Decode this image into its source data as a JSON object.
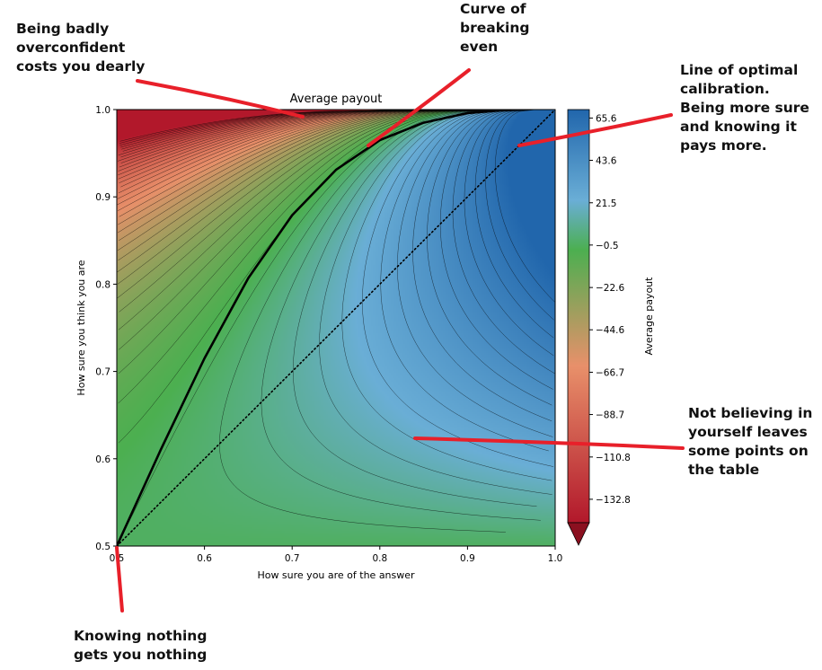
{
  "chart_data": {
    "type": "heatmap",
    "title": "Average payout",
    "xlabel": "How sure you are of the answer",
    "ylabel": "How sure you think you are",
    "xlim": [
      0.5,
      1.0
    ],
    "ylim": [
      0.5,
      1.0
    ],
    "x_ticks": [
      "0.5",
      "0.6",
      "0.7",
      "0.8",
      "0.9",
      "1.0"
    ],
    "y_ticks": [
      "0.5",
      "0.6",
      "0.7",
      "0.8",
      "0.9",
      "1.0"
    ],
    "colorbar": {
      "label": "Average payout",
      "min": -145,
      "max": 70,
      "ticks": [
        "65.6",
        "43.6",
        "21.5",
        "−0.5",
        "−22.6",
        "−44.6",
        "−66.7",
        "−88.7",
        "−110.8",
        "−132.8"
      ],
      "tick_values": [
        65.6,
        43.6,
        21.5,
        -0.5,
        -22.6,
        -44.6,
        -66.7,
        -88.7,
        -110.8,
        -132.8
      ],
      "extend": "min",
      "colors": [
        "#b2182b",
        "#e8906a",
        "#4caf50",
        "#6aaed6",
        "#2166ac"
      ]
    },
    "series": [
      {
        "name": "Curve of breaking even",
        "style": "solid",
        "x": [
          0.5,
          0.55,
          0.6,
          0.65,
          0.7,
          0.75,
          0.8,
          0.85,
          0.9,
          0.95
        ],
        "y": [
          0.5,
          0.61,
          0.715,
          0.807,
          0.879,
          0.931,
          0.965,
          0.985,
          0.996,
          1.0
        ]
      },
      {
        "name": "Line of optimal calibration",
        "style": "dotted",
        "x": [
          0.5,
          1.0
        ],
        "y": [
          0.5,
          1.0
        ]
      }
    ],
    "grid": false
  },
  "annotations": [
    {
      "id": "overconfident",
      "lines": [
        "Being badly",
        "overconfident",
        "costs you dearly"
      ]
    },
    {
      "id": "breaking-even",
      "lines": [
        "Curve of",
        "breaking",
        "even"
      ]
    },
    {
      "id": "calibration",
      "lines": [
        "Line of optimal",
        "calibration.",
        "Being more sure",
        "and knowing it",
        "pays more."
      ]
    },
    {
      "id": "underconfident",
      "lines": [
        "Not believing in",
        "yourself leaves",
        "some points on",
        "the table"
      ]
    },
    {
      "id": "knowing-nothing",
      "lines": [
        "Knowing nothing",
        "gets you nothing"
      ]
    }
  ]
}
